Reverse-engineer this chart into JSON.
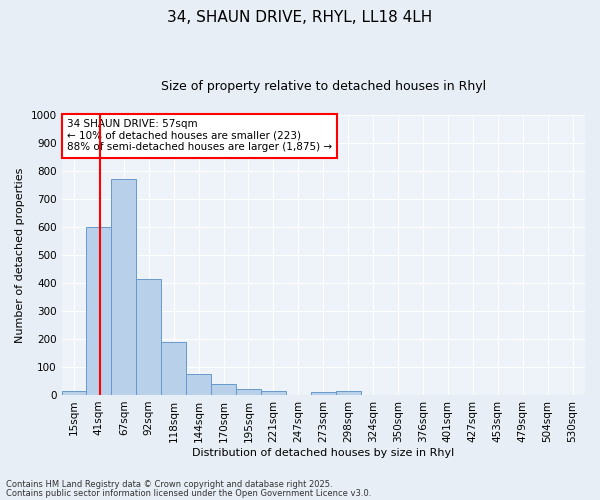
{
  "title_line1": "34, SHAUN DRIVE, RHYL, LL18 4LH",
  "title_line2": "Size of property relative to detached houses in Rhyl",
  "xlabel": "Distribution of detached houses by size in Rhyl",
  "ylabel": "Number of detached properties",
  "bin_labels": [
    "15sqm",
    "41sqm",
    "67sqm",
    "92sqm",
    "118sqm",
    "144sqm",
    "170sqm",
    "195sqm",
    "221sqm",
    "247sqm",
    "273sqm",
    "298sqm",
    "324sqm",
    "350sqm",
    "376sqm",
    "401sqm",
    "427sqm",
    "453sqm",
    "479sqm",
    "504sqm",
    "530sqm"
  ],
  "bar_values": [
    15,
    600,
    770,
    415,
    190,
    75,
    40,
    20,
    15,
    0,
    10,
    15,
    0,
    0,
    0,
    0,
    0,
    0,
    0,
    0,
    0
  ],
  "bar_color": "#b8d0ea",
  "bar_edge_color": "#6699cc",
  "vline_x": 1.05,
  "vline_color": "red",
  "annotation_title": "34 SHAUN DRIVE: 57sqm",
  "annotation_line2": "← 10% of detached houses are smaller (223)",
  "annotation_line3": "88% of semi-detached houses are larger (1,875) →",
  "annotation_box_color": "#ffffff",
  "annotation_box_edge": "red",
  "ylim": [
    0,
    1000
  ],
  "yticks": [
    0,
    100,
    200,
    300,
    400,
    500,
    600,
    700,
    800,
    900,
    1000
  ],
  "footer_line1": "Contains HM Land Registry data © Crown copyright and database right 2025.",
  "footer_line2": "Contains public sector information licensed under the Open Government Licence v3.0.",
  "bg_color": "#e8eef5",
  "plot_bg_color": "#eef3f9",
  "title_fontsize": 11,
  "subtitle_fontsize": 9,
  "axis_label_fontsize": 8,
  "tick_fontsize": 7.5,
  "annotation_fontsize": 7.5,
  "footer_fontsize": 6
}
